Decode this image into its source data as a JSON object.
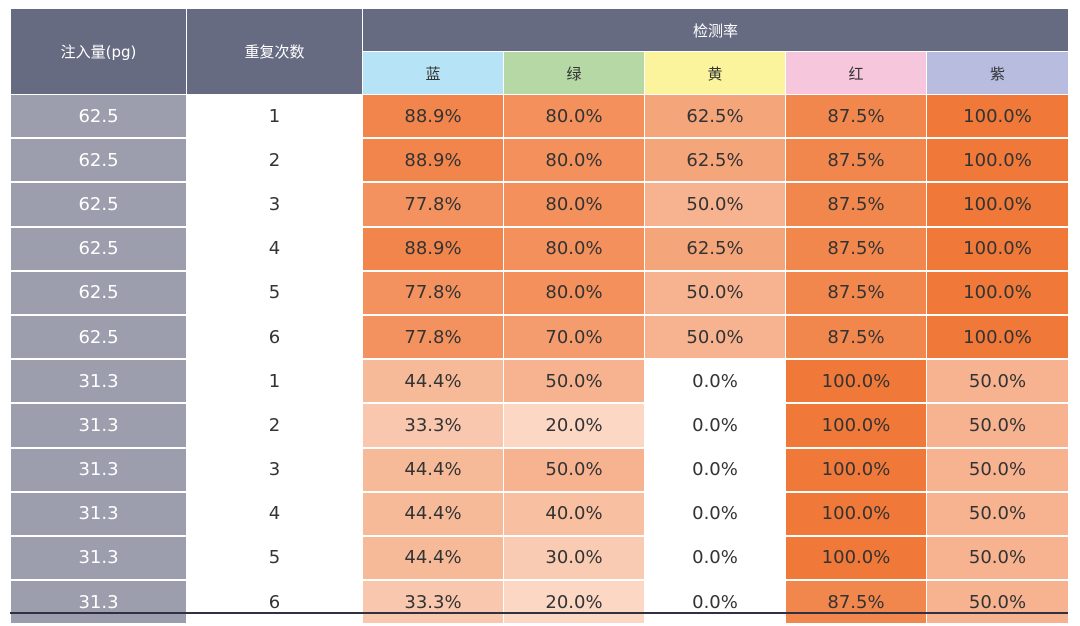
{
  "chart_data": {
    "type": "table",
    "headers": {
      "injection": "注入量(pg)",
      "replicate": "重复次数",
      "group": "检测率",
      "colors": [
        "蓝",
        "绿",
        "黄",
        "红",
        "紫"
      ]
    },
    "header_colors": [
      "#b7e3f6",
      "#b5d8a4",
      "#fbf49c",
      "#f6c6dc",
      "#b8bde0"
    ],
    "rows": [
      {
        "injection": "62.5",
        "replicate": "1",
        "values": [
          "88.9%",
          "80.0%",
          "62.5%",
          "87.5%",
          "100.0%"
        ]
      },
      {
        "injection": "62.5",
        "replicate": "2",
        "values": [
          "88.9%",
          "80.0%",
          "62.5%",
          "87.5%",
          "100.0%"
        ]
      },
      {
        "injection": "62.5",
        "replicate": "3",
        "values": [
          "77.8%",
          "80.0%",
          "50.0%",
          "87.5%",
          "100.0%"
        ]
      },
      {
        "injection": "62.5",
        "replicate": "4",
        "values": [
          "88.9%",
          "80.0%",
          "62.5%",
          "87.5%",
          "100.0%"
        ]
      },
      {
        "injection": "62.5",
        "replicate": "5",
        "values": [
          "77.8%",
          "80.0%",
          "50.0%",
          "87.5%",
          "100.0%"
        ]
      },
      {
        "injection": "62.5",
        "replicate": "6",
        "values": [
          "77.8%",
          "70.0%",
          "50.0%",
          "87.5%",
          "100.0%"
        ]
      },
      {
        "injection": "31.3",
        "replicate": "1",
        "values": [
          "44.4%",
          "50.0%",
          "0.0%",
          "100.0%",
          "50.0%"
        ]
      },
      {
        "injection": "31.3",
        "replicate": "2",
        "values": [
          "33.3%",
          "20.0%",
          "0.0%",
          "100.0%",
          "50.0%"
        ]
      },
      {
        "injection": "31.3",
        "replicate": "3",
        "values": [
          "44.4%",
          "50.0%",
          "0.0%",
          "100.0%",
          "50.0%"
        ]
      },
      {
        "injection": "31.3",
        "replicate": "4",
        "values": [
          "44.4%",
          "40.0%",
          "0.0%",
          "100.0%",
          "50.0%"
        ]
      },
      {
        "injection": "31.3",
        "replicate": "5",
        "values": [
          "44.4%",
          "30.0%",
          "0.0%",
          "100.0%",
          "50.0%"
        ]
      },
      {
        "injection": "31.3",
        "replicate": "6",
        "values": [
          "33.3%",
          "20.0%",
          "0.0%",
          "87.5%",
          "50.0%"
        ]
      }
    ],
    "heat_colors": {
      "low": "#ffffff",
      "high": "#f07838"
    }
  }
}
